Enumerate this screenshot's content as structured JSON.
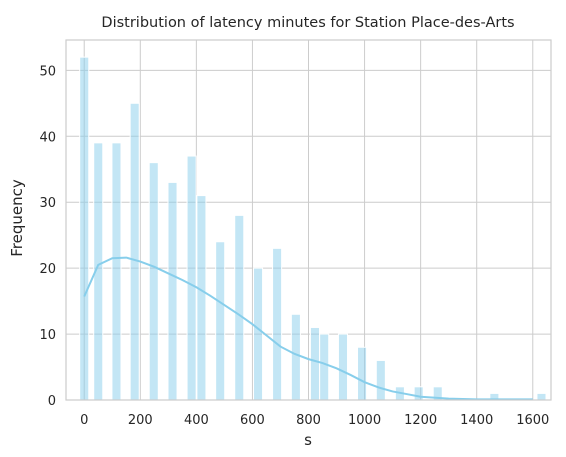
{
  "chart_data": {
    "type": "bar",
    "title": "Distribution of latency minutes for Station Place-des-Arts",
    "xlabel": "s",
    "ylabel": "Frequency",
    "xlim": [
      -65,
      1665
    ],
    "ylim": [
      0,
      54.6
    ],
    "xticks": [
      0,
      200,
      400,
      600,
      800,
      1000,
      1200,
      1400,
      1600
    ],
    "yticks": [
      0,
      10,
      20,
      30,
      40,
      50
    ],
    "grid": true,
    "legend": "none",
    "bar_color": "#87ceeb",
    "kde_color": "#87ceeb",
    "bin_width": 32.3,
    "bins": [
      {
        "x": 0,
        "count": 52
      },
      {
        "x": 50,
        "count": 39
      },
      {
        "x": 115,
        "count": 39
      },
      {
        "x": 180,
        "count": 45
      },
      {
        "x": 248,
        "count": 36
      },
      {
        "x": 315,
        "count": 33
      },
      {
        "x": 383,
        "count": 37
      },
      {
        "x": 418,
        "count": 31
      },
      {
        "x": 485,
        "count": 24
      },
      {
        "x": 553,
        "count": 28
      },
      {
        "x": 620,
        "count": 20
      },
      {
        "x": 688,
        "count": 23
      },
      {
        "x": 755,
        "count": 13
      },
      {
        "x": 823,
        "count": 11
      },
      {
        "x": 856,
        "count": 10
      },
      {
        "x": 923,
        "count": 10
      },
      {
        "x": 991,
        "count": 8
      },
      {
        "x": 1058,
        "count": 6
      },
      {
        "x": 1126,
        "count": 2
      },
      {
        "x": 1193,
        "count": 2
      },
      {
        "x": 1261,
        "count": 2
      },
      {
        "x": 1463,
        "count": 1
      },
      {
        "x": 1631,
        "count": 1
      }
    ],
    "kde": {
      "x": [
        0,
        50,
        100,
        150,
        200,
        250,
        300,
        350,
        400,
        450,
        500,
        550,
        600,
        650,
        700,
        750,
        800,
        850,
        900,
        950,
        1000,
        1050,
        1100,
        1150,
        1200,
        1300,
        1400,
        1500,
        1600
      ],
      "y": [
        15.7,
        20.5,
        21.5,
        21.6,
        21.0,
        20.2,
        19.2,
        18.2,
        17.1,
        15.8,
        14.4,
        13.0,
        11.5,
        9.8,
        8.1,
        7.0,
        6.2,
        5.6,
        4.8,
        3.8,
        2.7,
        1.9,
        1.3,
        0.9,
        0.5,
        0.2,
        0.1,
        0.1,
        0.1
      ]
    }
  }
}
